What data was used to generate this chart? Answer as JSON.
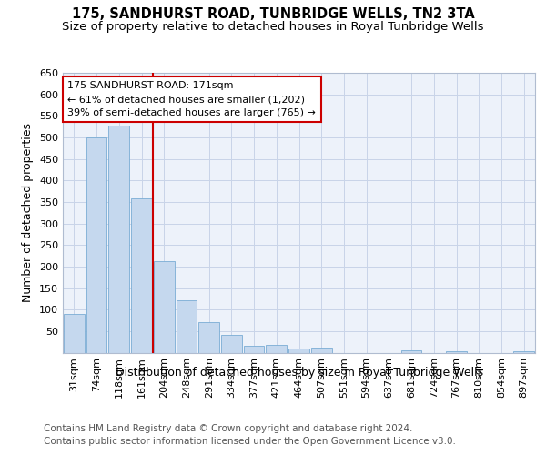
{
  "title": "175, SANDHURST ROAD, TUNBRIDGE WELLS, TN2 3TA",
  "subtitle": "Size of property relative to detached houses in Royal Tunbridge Wells",
  "xlabel": "Distribution of detached houses by size in Royal Tunbridge Wells",
  "ylabel": "Number of detached properties",
  "footer_line1": "Contains HM Land Registry data © Crown copyright and database right 2024.",
  "footer_line2": "Contains public sector information licensed under the Open Government Licence v3.0.",
  "categories": [
    "31sqm",
    "74sqm",
    "118sqm",
    "161sqm",
    "204sqm",
    "248sqm",
    "291sqm",
    "334sqm",
    "377sqm",
    "421sqm",
    "464sqm",
    "507sqm",
    "551sqm",
    "594sqm",
    "637sqm",
    "681sqm",
    "724sqm",
    "767sqm",
    "810sqm",
    "854sqm",
    "897sqm"
  ],
  "values": [
    90,
    500,
    527,
    358,
    212,
    121,
    70,
    42,
    15,
    19,
    10,
    11,
    0,
    0,
    0,
    5,
    0,
    4,
    0,
    0,
    4
  ],
  "bar_color": "#c5d8ee",
  "bar_edge_color": "#7aadd4",
  "highlight_line_color": "#cc0000",
  "annotation_text": "175 SANDHURST ROAD: 171sqm\n← 61% of detached houses are smaller (1,202)\n39% of semi-detached houses are larger (765) →",
  "annotation_box_color": "#ffffff",
  "annotation_box_edge": "#cc0000",
  "ylim": [
    0,
    650
  ],
  "yticks": [
    0,
    50,
    100,
    150,
    200,
    250,
    300,
    350,
    400,
    450,
    500,
    550,
    600,
    650
  ],
  "grid_color": "#c8d4e8",
  "bg_color": "#edf2fa",
  "title_fontsize": 10.5,
  "subtitle_fontsize": 9.5,
  "ylabel_fontsize": 9,
  "xlabel_fontsize": 9,
  "tick_fontsize": 8,
  "annotation_fontsize": 8,
  "footer_fontsize": 7.5
}
